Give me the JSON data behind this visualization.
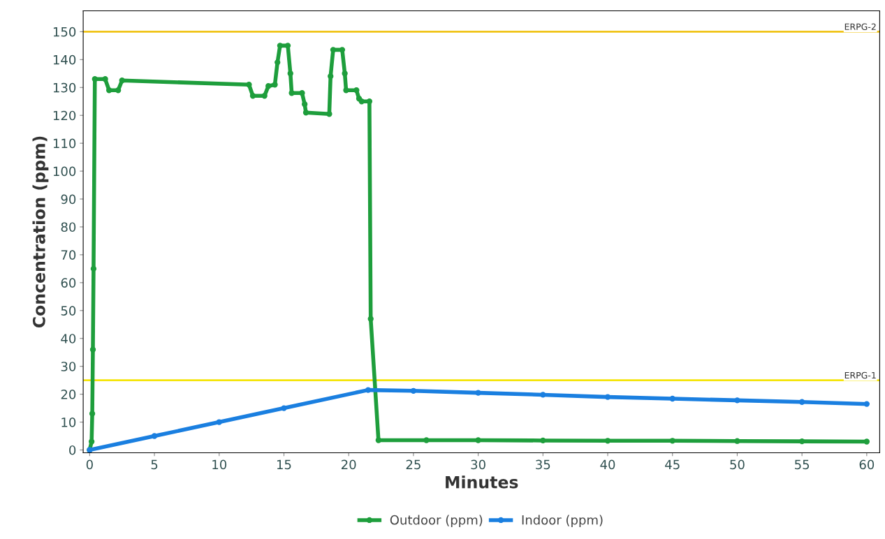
{
  "chart_data": {
    "type": "line",
    "xlabel": "Minutes",
    "ylabel": "Concentration (ppm)",
    "xlim": [
      -0.5,
      61
    ],
    "ylim": [
      -1,
      157.5
    ],
    "xticks": [
      0,
      5,
      10,
      15,
      20,
      25,
      30,
      35,
      40,
      45,
      50,
      55,
      60
    ],
    "yticks": [
      0,
      10,
      20,
      30,
      40,
      50,
      60,
      70,
      80,
      90,
      100,
      110,
      120,
      130,
      140,
      150
    ],
    "grid": false,
    "legend": "bottom",
    "marker": "circle",
    "line_style": "solid",
    "series": [
      {
        "name": "Outdoor (ppm)",
        "color": "#1e9e3c",
        "x": [
          0,
          0.15,
          0.2,
          0.25,
          0.3,
          0.4,
          1.2,
          1.5,
          2.2,
          2.5,
          12.3,
          12.6,
          13.5,
          13.8,
          14.3,
          14.5,
          14.7,
          15.3,
          15.5,
          15.6,
          16.4,
          16.6,
          16.7,
          18.5,
          18.6,
          18.8,
          19.5,
          19.7,
          19.8,
          20.6,
          20.8,
          21.0,
          21.6,
          21.7,
          22.3,
          26,
          30,
          35,
          40,
          45,
          50,
          55,
          60
        ],
        "values": [
          0,
          3,
          13,
          36,
          65,
          133,
          133,
          129,
          129,
          132.5,
          131,
          127,
          127,
          130.5,
          131,
          139,
          145,
          145,
          135,
          128,
          128,
          124,
          121,
          120.5,
          134,
          143.5,
          143.5,
          135,
          129,
          129,
          126,
          125,
          125,
          47,
          3.5,
          3.5,
          3.5,
          3.4,
          3.3,
          3.3,
          3.2,
          3.1,
          3
        ]
      },
      {
        "name": "Indoor (ppm)",
        "color": "#1a7fe0",
        "x": [
          0,
          5,
          10,
          15,
          21.5,
          25,
          30,
          35,
          40,
          45,
          50,
          55,
          60
        ],
        "values": [
          0,
          5,
          10,
          15,
          21.5,
          21.2,
          20.5,
          19.8,
          19,
          18.4,
          17.8,
          17.2,
          16.5
        ]
      }
    ],
    "ref_lines": [
      {
        "axis": "y",
        "value": 150,
        "label": "ERPG-2",
        "color": "#f0c419",
        "line_style": "solid"
      },
      {
        "axis": "y",
        "value": 25,
        "label": "ERPG-1",
        "color": "#f5e50a",
        "line_style": "solid"
      }
    ]
  }
}
